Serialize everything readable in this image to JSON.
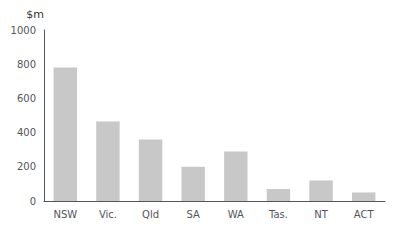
{
  "chart_data": {
    "type": "bar",
    "ylabel": "$m",
    "categories": [
      "NSW",
      "Vic.",
      "Qld",
      "SA",
      "WA",
      "Tas.",
      "NT",
      "ACT"
    ],
    "values": [
      780,
      465,
      360,
      200,
      290,
      70,
      120,
      50
    ],
    "color": "#c8c8c8",
    "ylim": [
      0,
      1000
    ],
    "yticks": [
      0,
      200,
      400,
      600,
      800,
      1000
    ],
    "grid": false
  }
}
